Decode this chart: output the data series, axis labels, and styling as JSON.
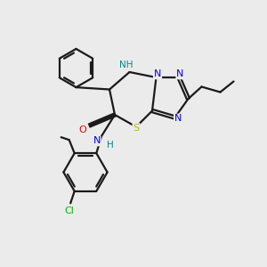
{
  "bg_color": "#ebebeb",
  "bond_color": "#1a1a1a",
  "N_color": "#0000ee",
  "O_color": "#ee0000",
  "S_color": "#bbbb00",
  "Cl_color": "#00bb00",
  "NH_color": "#008888",
  "C_color": "#1a1a1a",
  "line_width": 1.6,
  "figsize": [
    3.0,
    3.0
  ],
  "dpi": 100,
  "xlim": [
    0,
    10
  ],
  "ylim": [
    0,
    10
  ]
}
